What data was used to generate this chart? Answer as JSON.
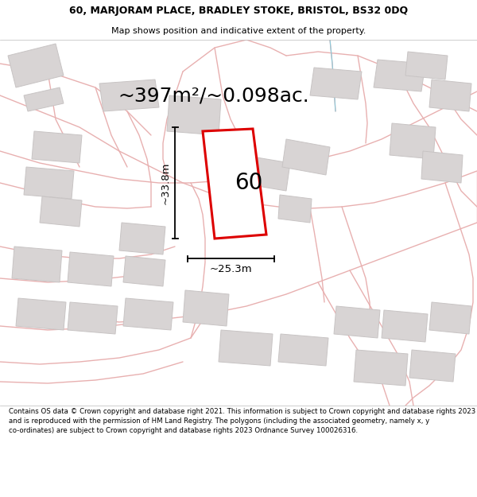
{
  "title_line1": "60, MARJORAM PLACE, BRADLEY STOKE, BRISTOL, BS32 0DQ",
  "title_line2": "Map shows position and indicative extent of the property.",
  "area_text": "~397m²/~0.098ac.",
  "label_number": "60",
  "dim_width": "~25.3m",
  "dim_height": "~33.8m",
  "footer": "Contains OS data © Crown copyright and database right 2021. This information is subject to Crown copyright and database rights 2023 and is reproduced with the permission of HM Land Registry. The polygons (including the associated geometry, namely x, y co-ordinates) are subject to Crown copyright and database rights 2023 Ordnance Survey 100026316.",
  "map_bg": "#f7f3f3",
  "road_color": "#e8b0b0",
  "building_color": "#d8d4d4",
  "building_edge": "#c8c4c4",
  "property_fill": "#ffffff",
  "property_border": "#dd0000",
  "cyan_line": "#88ccdd",
  "title_fontsize": 9,
  "subtitle_fontsize": 8,
  "area_fontsize": 18,
  "label_fontsize": 20,
  "dim_fontsize": 9.5,
  "footer_fontsize": 6.2
}
